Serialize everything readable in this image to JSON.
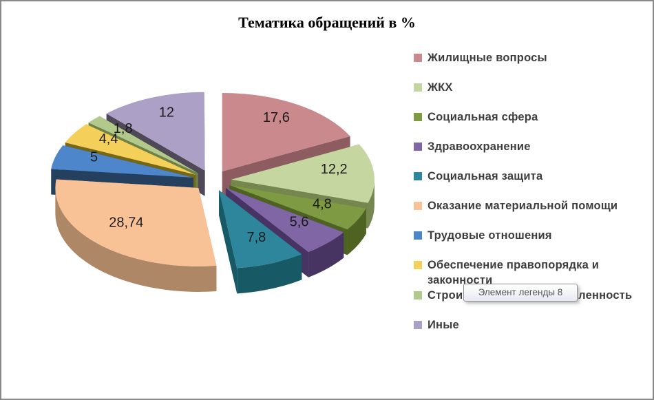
{
  "frame": {
    "background": "#FFFFFF",
    "border_color": "#898989"
  },
  "chart_data": {
    "type": "pie",
    "style": "3d-exploded",
    "title": "Тематика обращений в %",
    "legend_position": "right",
    "total": 100,
    "units": "%",
    "slices": [
      {
        "label": "Жилищные вопросы",
        "value": 17.6,
        "value_label": "17,6",
        "color": "#C9898D",
        "side_color": "#8C5C60"
      },
      {
        "label": "ЖКХ",
        "value": 12.2,
        "value_label": "12,2",
        "color": "#C6D6A0",
        "side_color": "#75874E"
      },
      {
        "label": "Социальная сфера",
        "value": 4.8,
        "value_label": "4,8",
        "color": "#7E9B44",
        "side_color": "#4E6222"
      },
      {
        "label": "Здравоохранение",
        "value": 5.6,
        "value_label": "5,6",
        "color": "#8066A5",
        "side_color": "#473462"
      },
      {
        "label": "Социальная защита",
        "value": 7.8,
        "value_label": "7,8",
        "color": "#2E869C",
        "side_color": "#175964"
      },
      {
        "label": "Оказание материальной помощи",
        "value": 28.74,
        "value_label": "28,74",
        "color": "#F8C296",
        "side_color": "#AE8766"
      },
      {
        "label": "Трудовые отношения",
        "value": 5,
        "value_label": "5",
        "color": "#4E86CB",
        "side_color": "#24405E"
      },
      {
        "label": "Обеспечение правопорядка и законности",
        "value": 4.4,
        "value_label": "4,4",
        "color": "#F4D05A",
        "side_color": "#756718"
      },
      {
        "label": "Строительство и промышленность",
        "value": 1.8,
        "value_label": "1,8",
        "color": "#B2C98C",
        "side_color": "#6E8147"
      },
      {
        "label": "Иные",
        "value": 12,
        "value_label": "12",
        "color": "#ACA0C6",
        "side_color": "#4E4857"
      }
    ]
  },
  "tooltip": {
    "text": "Элемент легенды 8"
  }
}
